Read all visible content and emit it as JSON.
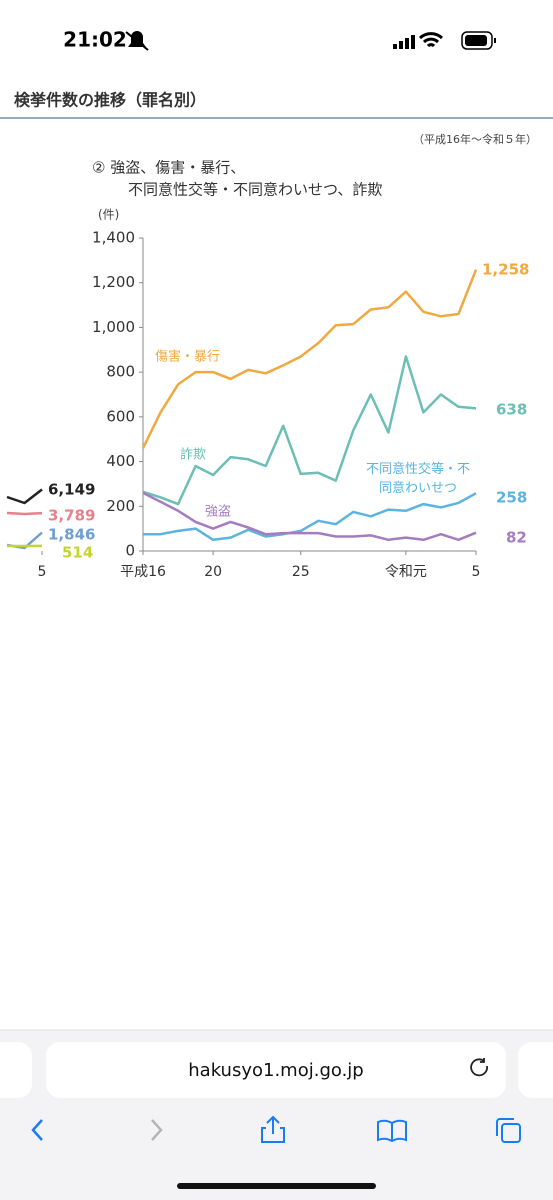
{
  "status_bar": {
    "time": "21:02"
  },
  "page": {
    "heading": "検挙件数の推移（罪名別）",
    "period": "（平成16年～令和５年）"
  },
  "chart_data": [
    {
      "type": "line",
      "categories": [
        null,
        null,
        "5"
      ],
      "ylim": [
        0,
        31300
      ],
      "series": [
        {
          "color": "#222222",
          "values": [
            5400,
            4800,
            6149
          ],
          "value_labels": [
            null,
            null,
            "6,149"
          ]
        },
        {
          "color": "#e8808a",
          "values": [
            3800,
            3700,
            3789
          ],
          "value_labels": [
            null,
            null,
            "3,789"
          ]
        },
        {
          "color": "#6f9fd0",
          "values": [
            600,
            300,
            1846
          ],
          "value_labels": [
            null,
            null,
            "1,846"
          ]
        },
        {
          "color": "#c5d52e",
          "values": [
            500,
            500,
            514
          ]
        }
      ]
    },
    {
      "type": "line",
      "title": [
        "② 強盗、傷害・暴行、",
        "不同意性交等・不同意わいせつ、詐欺"
      ],
      "ylabel": "(件)",
      "categories": [
        "平成16",
        null,
        null,
        null,
        "20",
        null,
        null,
        null,
        null,
        "25",
        null,
        null,
        null,
        null,
        null,
        "令和元",
        null,
        null,
        null,
        "5"
      ],
      "ylim": [
        0,
        1400
      ],
      "yticks": [
        0,
        200,
        400,
        600,
        800,
        {
          "value": 1000,
          "label": "1,000"
        },
        {
          "value": 1200,
          "label": "1,200"
        },
        {
          "value": 1400,
          "label": "1,400"
        }
      ],
      "series": [
        {
          "name": "傷害・暴行",
          "color": "#f0a940",
          "values": [
            460,
            620,
            745,
            800,
            800,
            770,
            810,
            795,
            830,
            870,
            930,
            1010,
            1015,
            1080,
            1090,
            1160,
            1070,
            1050,
            1060,
            1258
          ],
          "value_labels": [
            null,
            null,
            null,
            null,
            null,
            null,
            null,
            null,
            null,
            null,
            null,
            null,
            null,
            null,
            null,
            null,
            null,
            null,
            null,
            "1,258"
          ]
        },
        {
          "name": "詐欺",
          "color": "#6bbfb4",
          "values": [
            265,
            240,
            210,
            380,
            340,
            420,
            410,
            380,
            560,
            345,
            350,
            315,
            540,
            700,
            530,
            870,
            620,
            700,
            645,
            638
          ]
        },
        {
          "name": "不同意性交等・不同意わいせつ",
          "color": "#5bb4e0",
          "values": [
            75,
            75,
            90,
            100,
            50,
            60,
            95,
            65,
            75,
            90,
            135,
            120,
            175,
            155,
            185,
            180,
            210,
            195,
            215,
            258
          ]
        },
        {
          "name": "強盗",
          "color": "#a57cc0",
          "values": [
            260,
            220,
            180,
            130,
            100,
            130,
            105,
            75,
            80,
            80,
            80,
            65,
            65,
            70,
            50,
            60,
            50,
            75,
            50,
            82
          ]
        }
      ]
    }
  ],
  "browser": {
    "url": "hakusyo1.moj.go.jp"
  }
}
